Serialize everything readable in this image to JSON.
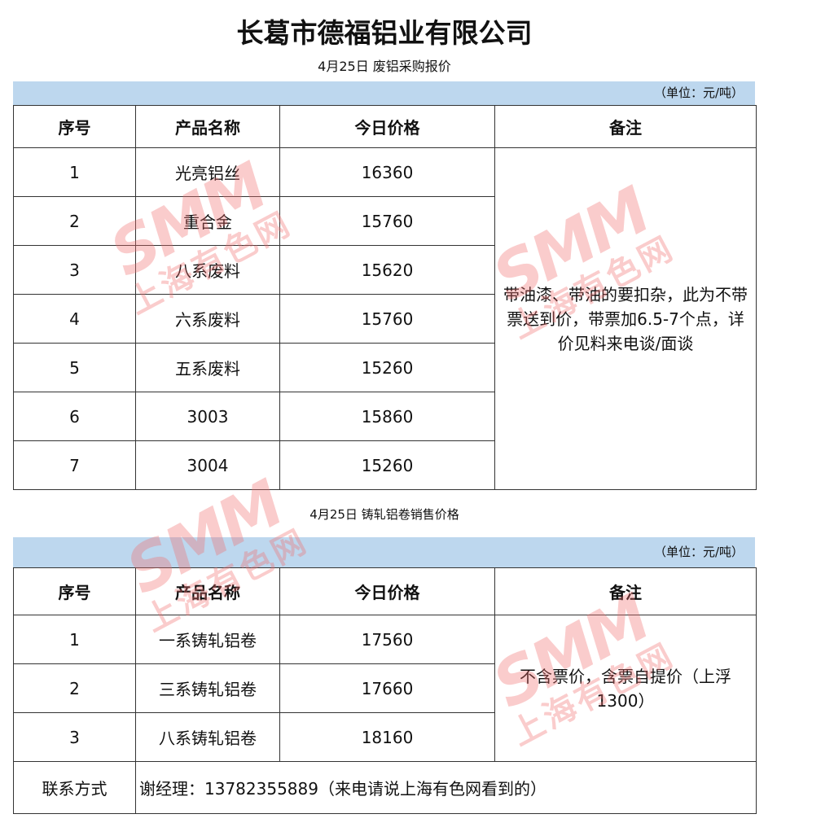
{
  "title": "长葛市德福铝业有限公司",
  "table1": {
    "subtitle": "4月25日 废铝采购报价",
    "unit": "（单位：元/吨）",
    "headers": [
      "序号",
      "产品名称",
      "今日价格",
      "备注"
    ],
    "rows": [
      [
        "1",
        "光亮铝丝",
        "16360"
      ],
      [
        "2",
        "重合金",
        "15760"
      ],
      [
        "3",
        "八系废料",
        "15620"
      ],
      [
        "4",
        "六系废料",
        "15760"
      ],
      [
        "5",
        "五系废料",
        "15260"
      ],
      [
        "6",
        "3003",
        "15860"
      ],
      [
        "7",
        "3004",
        "15260"
      ]
    ],
    "note": "带油漆、带油的要扣杂，此为不带票送到价，带票加6.5-7个点，详价见料来电谈/面谈"
  },
  "table2": {
    "subtitle": "4月25日 铸轧铝卷销售价格",
    "unit": "（单位：元/吨）",
    "headers": [
      "序号",
      "产品名称",
      "今日价格",
      "备注"
    ],
    "rows": [
      [
        "1",
        "一系铸轧铝卷",
        "17560"
      ],
      [
        "2",
        "三系铸轧铝卷",
        "17660"
      ],
      [
        "3",
        "八系铸轧铝卷",
        "18160"
      ]
    ],
    "note": "不含票价，含票自提价（上浮1300）",
    "contact_label": "联系方式",
    "contact": "谢经理：13782355889（来电请说上海有色网看到的）"
  },
  "watermark": {
    "logo": "SMM",
    "name": "上海有色网",
    "color": "#f06e6e"
  },
  "colors": {
    "band": "#bdd7ee"
  }
}
